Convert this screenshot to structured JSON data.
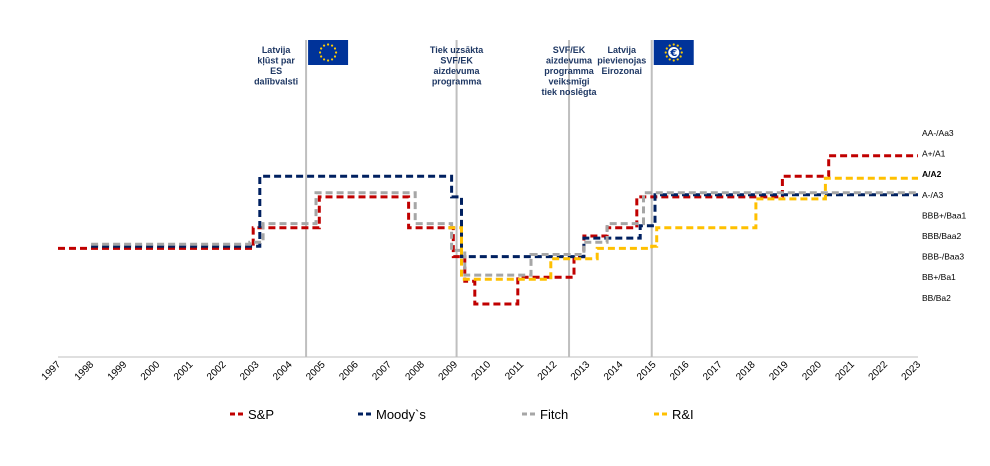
{
  "chart_data": {
    "type": "line",
    "title": "",
    "xlabel": "",
    "ylabel": "",
    "x_range": [
      1997,
      2023
    ],
    "x_ticks": [
      "1997",
      "1998",
      "1999",
      "2000",
      "2001",
      "2002",
      "2003",
      "2004",
      "2005",
      "2006",
      "2007",
      "2008",
      "2009",
      "2010",
      "2011",
      "2012",
      "2013",
      "2014",
      "2015",
      "2016",
      "2017",
      "2018",
      "2019",
      "2020",
      "2021",
      "2022",
      "2023"
    ],
    "y_levels": [
      {
        "label": "AA-/Aa3",
        "level": 1
      },
      {
        "label": "A+/A1",
        "level": 2
      },
      {
        "label": "A/A2",
        "level": 3,
        "bold": true
      },
      {
        "label": "A-/A3",
        "level": 4
      },
      {
        "label": "BBB+/Baa1",
        "level": 5
      },
      {
        "label": "BBB/Baa2",
        "level": 6
      },
      {
        "label": "BBB-/Baa3",
        "level": 7
      },
      {
        "label": "BB+/Ba1",
        "level": 8
      },
      {
        "label": "BB/Ba2",
        "level": 9
      }
    ],
    "legend_position": "bottom",
    "series": [
      {
        "name": "S&P",
        "color": "#c00000",
        "steps": [
          [
            1997,
            6.6
          ],
          [
            2002.9,
            5.6
          ],
          [
            2004.9,
            4.1
          ],
          [
            2007.6,
            5.6
          ],
          [
            2008.95,
            7.0
          ],
          [
            2009.3,
            8.2
          ],
          [
            2009.6,
            9.3
          ],
          [
            2010.9,
            8.0
          ],
          [
            2012.6,
            7.0
          ],
          [
            2012.9,
            6.0
          ],
          [
            2013.6,
            5.6
          ],
          [
            2014.5,
            4.1
          ],
          [
            2018.9,
            3.1
          ],
          [
            2020.3,
            2.1
          ],
          [
            2023,
            2.1
          ]
        ]
      },
      {
        "name": "Moody`s",
        "color": "#002060",
        "steps": [
          [
            1998,
            6.5
          ],
          [
            2003.1,
            3.1
          ],
          [
            2008.9,
            4.1
          ],
          [
            2009.2,
            7.0
          ],
          [
            2012.9,
            6.1
          ],
          [
            2014.6,
            5.5
          ],
          [
            2015.05,
            4.0
          ],
          [
            2023,
            4.0
          ]
        ]
      },
      {
        "name": "Fitch",
        "color": "#a6a6a6",
        "steps": [
          [
            1998,
            6.4
          ],
          [
            2002.8,
            6.3
          ],
          [
            2003.2,
            5.4
          ],
          [
            2004.8,
            3.9
          ],
          [
            2007.8,
            5.4
          ],
          [
            2008.9,
            6.7
          ],
          [
            2009.3,
            7.9
          ],
          [
            2011.3,
            6.9
          ],
          [
            2012.9,
            6.3
          ],
          [
            2013.3,
            6.3
          ],
          [
            2013.6,
            5.4
          ],
          [
            2014.7,
            3.9
          ],
          [
            2023,
            3.9
          ]
        ]
      },
      {
        "name": "R&I",
        "color": "#ffc000",
        "steps": [
          [
            2008.8,
            5.6
          ],
          [
            2009.2,
            8.1
          ],
          [
            2011.9,
            7.1
          ],
          [
            2012.2,
            7.1
          ],
          [
            2013.3,
            6.6
          ],
          [
            2014.95,
            6.5
          ],
          [
            2015.1,
            5.6
          ],
          [
            2018.1,
            4.2
          ],
          [
            2020.2,
            3.2
          ],
          [
            2023,
            3.2
          ]
        ]
      }
    ],
    "events": [
      {
        "x": 2004.5,
        "label": [
          "Latvija",
          "kļūst par",
          "ES",
          "dalībvalsti"
        ],
        "flag": "eu-flag-icon"
      },
      {
        "x": 2009.05,
        "label": [
          "Tiek uzsākta",
          "SVF/EK",
          "aizdevuma",
          "programma"
        ]
      },
      {
        "x": 2012.45,
        "label": [
          "SVF/EK",
          "aizdevuma",
          "programma",
          "veiksmīgi",
          "tiek noslēgta"
        ]
      },
      {
        "x": 2014.95,
        "label": [
          "Latvija",
          "pievienojas",
          "Eirozonai"
        ],
        "flag": "euro-flag-icon"
      }
    ]
  },
  "colors": {
    "event_line": "#bfbfbf",
    "event_text": "#1f3864",
    "flag_blue": "#003399",
    "flag_star": "#ffcc00"
  }
}
